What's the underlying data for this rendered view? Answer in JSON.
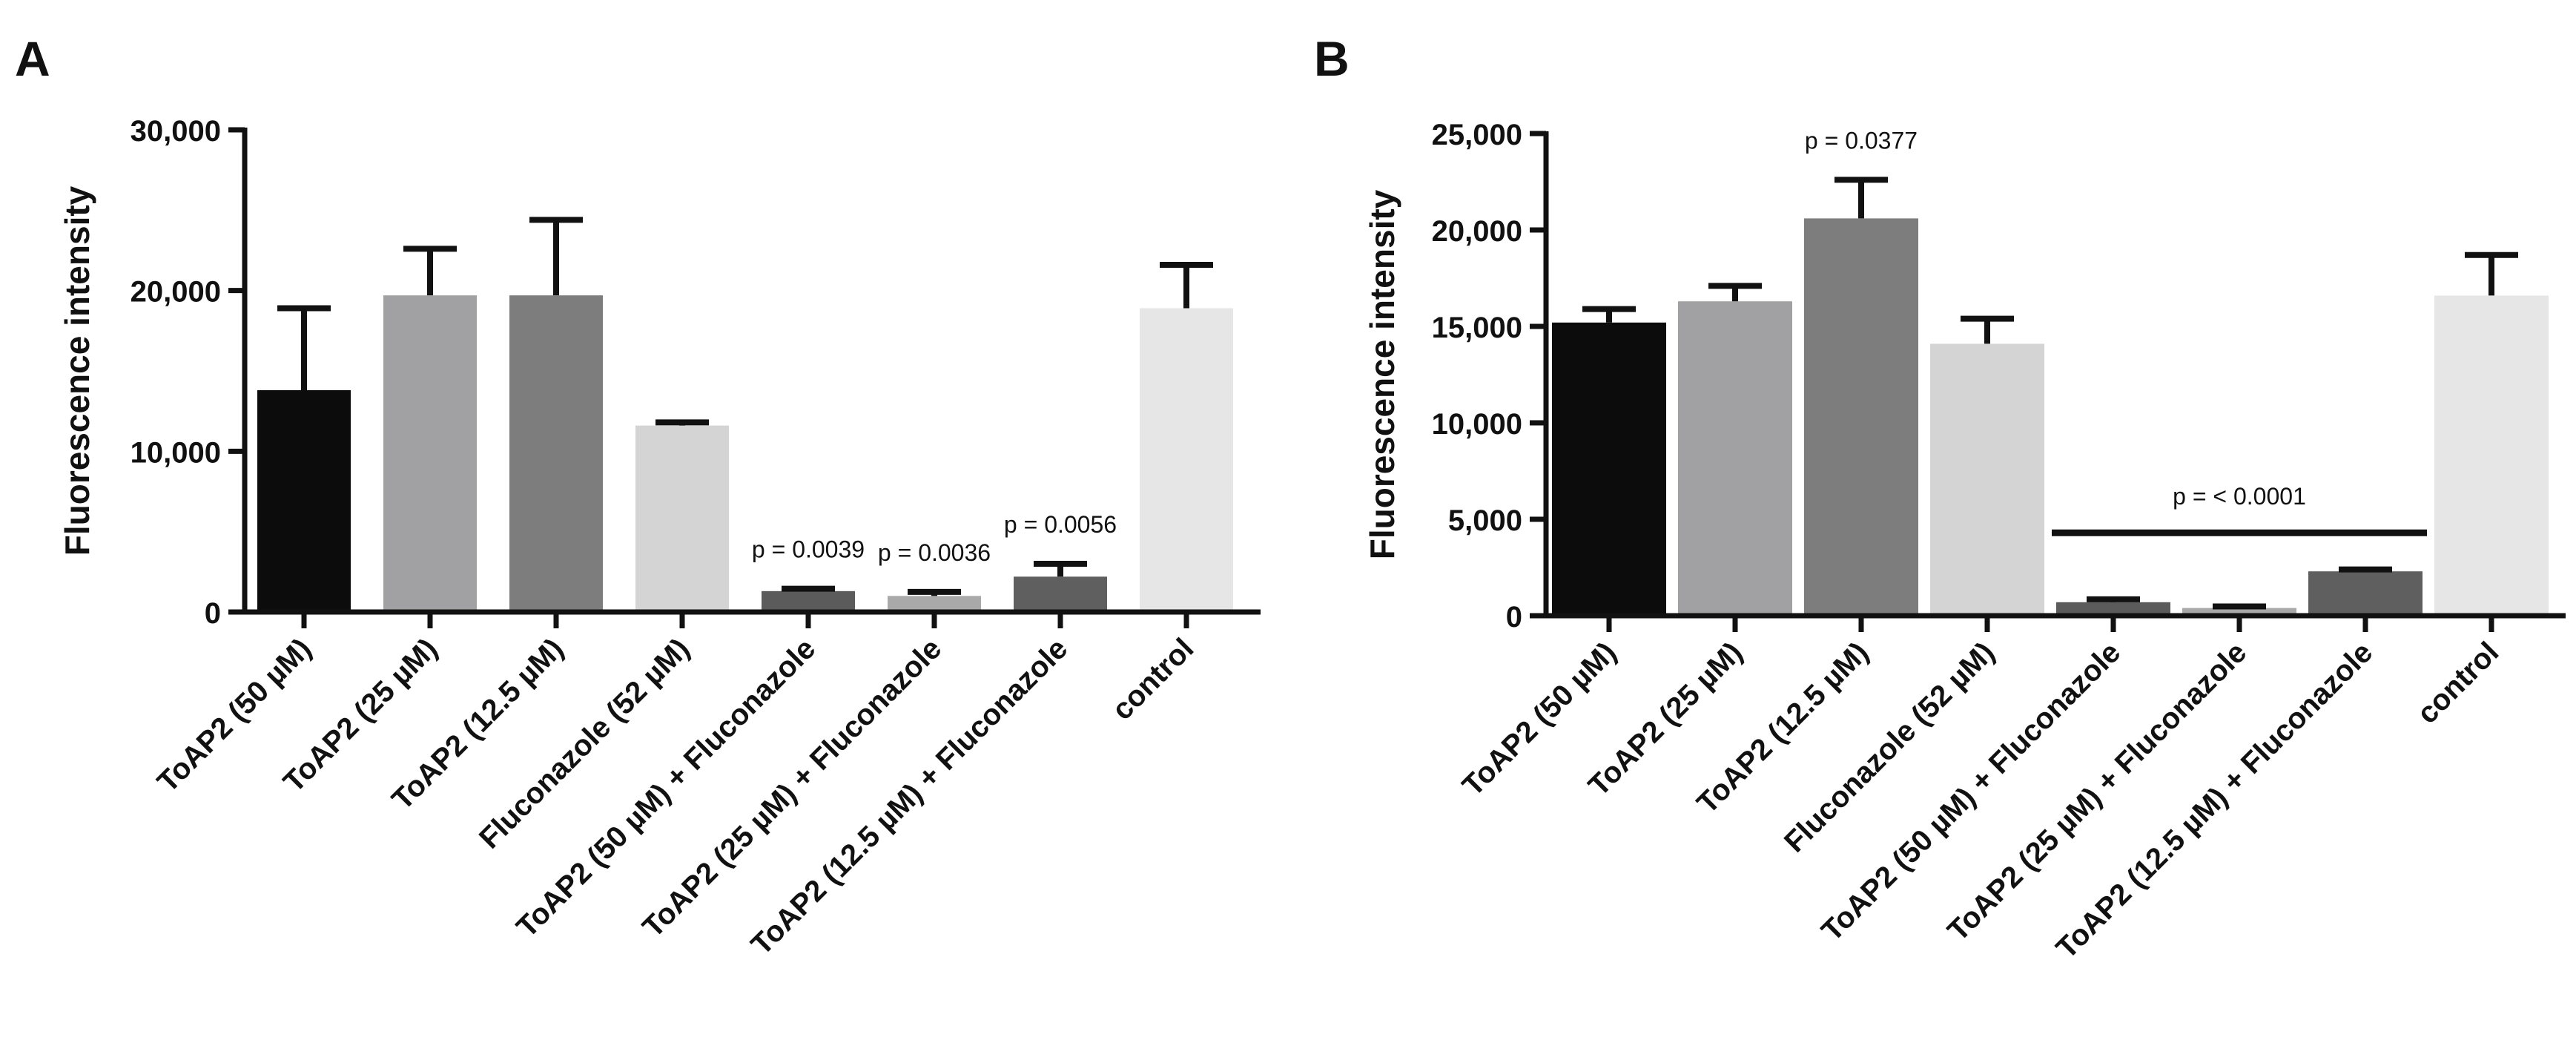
{
  "chart_data": [
    {
      "panel": "A",
      "type": "bar",
      "ylabel": "Fluorescence intensity",
      "xlabel": "",
      "ylim": [
        0,
        30000
      ],
      "yticks": [
        0,
        10000,
        20000,
        30000
      ],
      "ytick_labels": [
        "0",
        "10,000",
        "20,000",
        "30,000"
      ],
      "categories": [
        "ToAP2 (50 µM)",
        "ToAP2 (25 µM)",
        "ToAP2 (12.5 µM)",
        "Fluconazole (52 µM)",
        "ToAP2 (50 µM) + Fluconazole",
        "ToAP2 (25 µM) + Fluconazole",
        "ToAP2 (12.5 µM) + Fluconazole",
        "control"
      ],
      "values": [
        13800,
        19700,
        19700,
        11600,
        1300,
        1000,
        2200,
        18900
      ],
      "errors": [
        5100,
        2900,
        4700,
        200,
        150,
        250,
        800,
        2700
      ],
      "colors": [
        "#0c0c0c",
        "#a1a1a3",
        "#7d7d7d",
        "#d4d4d4",
        "#5b5b5b",
        "#a9a9a9",
        "#5f5f5f",
        "#e6e6e6"
      ],
      "annotations": [
        {
          "text": "p = 0.0039",
          "category_index": 4
        },
        {
          "text": "p = 0.0036",
          "category_index": 5
        },
        {
          "text": "p = 0.0056",
          "category_index": 6
        }
      ]
    },
    {
      "panel": "B",
      "type": "bar",
      "ylabel": "Fluorescence intensity",
      "xlabel": "",
      "ylim": [
        0,
        25000
      ],
      "yticks": [
        0,
        5000,
        10000,
        15000,
        20000,
        25000
      ],
      "ytick_labels": [
        "0",
        "5,000",
        "10,000",
        "15,000",
        "20,000",
        "25,000"
      ],
      "categories": [
        "ToAP2 (50 µM)",
        "ToAP2 (25 µM)",
        "ToAP2 (12.5 µM)",
        "Fluconazole (52 µM)",
        "ToAP2 (50 µM) + Fluconazole",
        "ToAP2 (25 µM) + Fluconazole",
        "ToAP2 (12.5 µM) + Fluconazole",
        "control"
      ],
      "values": [
        15200,
        16300,
        20600,
        14100,
        700,
        400,
        2300,
        16600
      ],
      "errors": [
        700,
        800,
        2000,
        1300,
        150,
        80,
        100,
        2100
      ],
      "colors": [
        "#0c0c0c",
        "#a1a1a3",
        "#7d7d7d",
        "#d4d4d4",
        "#5b5b5b",
        "#a9a9a9",
        "#5f5f5f",
        "#e6e6e6"
      ],
      "annotations": [
        {
          "text": "p = 0.0377",
          "category_index": 2
        },
        {
          "text": "p = < 0.0001",
          "category_span": [
            4,
            6
          ],
          "bracket_value": 4300
        }
      ]
    }
  ]
}
